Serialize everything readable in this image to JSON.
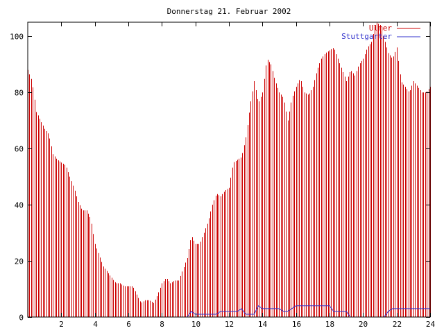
{
  "chart_data": {
    "type": "bar",
    "title": "Donnerstag 21. Februar 2002",
    "xlim": [
      0,
      24
    ],
    "ylim": [
      0,
      105
    ],
    "xticks": [
      2,
      4,
      6,
      8,
      10,
      12,
      14,
      16,
      18,
      20,
      22,
      24
    ],
    "yticks": [
      0,
      20,
      40,
      60,
      80,
      100
    ],
    "xtick_labels": [
      "2",
      "4",
      "6",
      "8",
      "10",
      "12",
      "14",
      "16",
      "18",
      "20",
      "22",
      "24"
    ],
    "ytick_labels": [
      "0",
      "20",
      "40",
      "60",
      "80",
      "100"
    ],
    "legend_position": "top-right",
    "colors": {
      "series1": "#cc0000",
      "series2": "#3333cc"
    },
    "series": [
      {
        "name": "Ulmer",
        "style": "impulses",
        "x": [
          0,
          0.25,
          0.5,
          0.75,
          1,
          1.25,
          1.5,
          1.75,
          2,
          2.25,
          2.5,
          2.75,
          3,
          3.25,
          3.5,
          3.75,
          4,
          4.25,
          4.5,
          4.75,
          5,
          5.25,
          5.5,
          5.75,
          6,
          6.25,
          6.5,
          6.75,
          7,
          7.25,
          7.5,
          7.75,
          8,
          8.25,
          8.5,
          8.75,
          9,
          9.25,
          9.5,
          9.75,
          10,
          10.25,
          10.5,
          10.75,
          11,
          11.25,
          11.5,
          11.75,
          12,
          12.25,
          12.5,
          12.75,
          13,
          13.25,
          13.5,
          13.75,
          14,
          14.25,
          14.5,
          14.75,
          15,
          15.25,
          15.5,
          15.75,
          16,
          16.25,
          16.5,
          16.75,
          17,
          17.25,
          17.5,
          17.75,
          18,
          18.25,
          18.5,
          18.75,
          19,
          19.25,
          19.5,
          19.75,
          20,
          20.25,
          20.5,
          20.75,
          21,
          21.25,
          21.5,
          21.75,
          22,
          22.25,
          22.5,
          22.75,
          23,
          23.25,
          23.5,
          23.75,
          24
        ],
        "values": [
          88,
          84,
          73,
          70,
          67,
          65,
          58,
          56,
          55,
          54,
          50,
          46,
          41,
          38,
          38,
          35,
          26,
          22,
          18,
          16,
          14,
          12,
          12,
          11,
          11,
          11,
          8,
          5,
          6,
          6,
          5,
          8,
          12,
          14,
          12,
          13,
          13,
          17,
          21,
          29,
          26,
          26,
          30,
          34,
          40,
          44,
          43,
          45,
          46,
          55,
          56,
          57,
          64,
          75,
          84,
          76,
          80,
          92,
          90,
          84,
          80,
          78,
          70,
          78,
          82,
          85,
          80,
          79,
          82,
          88,
          92,
          94,
          95,
          96,
          92,
          88,
          84,
          88,
          86,
          90,
          92,
          96,
          98,
          105,
          104,
          99,
          94,
          92,
          96,
          84,
          82,
          80,
          84,
          82,
          80,
          80,
          82
        ]
      },
      {
        "name": "Stuttgarter",
        "style": "line",
        "x": [
          0,
          9.5,
          9.75,
          10,
          11.25,
          11.5,
          12.5,
          12.75,
          13,
          13.5,
          13.75,
          14,
          15,
          15.25,
          15.5,
          15.75,
          16,
          18,
          18.25,
          19,
          19.25,
          21.25,
          21.5,
          21.75,
          24
        ],
        "values": [
          0,
          0,
          2,
          1,
          1,
          2,
          2,
          3,
          1,
          1,
          4,
          3,
          3,
          2,
          2,
          3,
          4,
          4,
          2,
          2,
          0,
          0,
          2,
          3,
          3
        ]
      }
    ]
  }
}
